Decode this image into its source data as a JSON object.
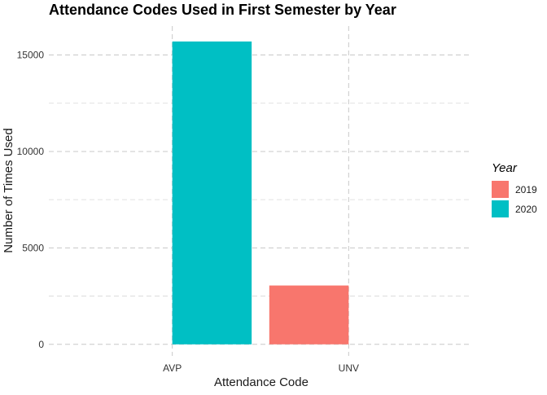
{
  "chart_data": {
    "type": "bar",
    "title": "Attendance Codes Used in First Semester by Year",
    "xlabel": "Attendance Code",
    "ylabel": "Number of Times Used",
    "categories": [
      "AVP",
      "UNV"
    ],
    "series": [
      {
        "name": "2019",
        "values": [
          0,
          3050
        ],
        "color": "#F8766D"
      },
      {
        "name": "2020",
        "values": [
          15700,
          0
        ],
        "color": "#00BFC4"
      }
    ],
    "ylim": [
      -600,
      16500
    ],
    "yticks": [
      0,
      5000,
      10000,
      15000
    ],
    "ytick_labels": [
      "0",
      "5000",
      "10000",
      "15000"
    ],
    "grid": true,
    "legend": {
      "title": "Year",
      "position": "right"
    }
  }
}
